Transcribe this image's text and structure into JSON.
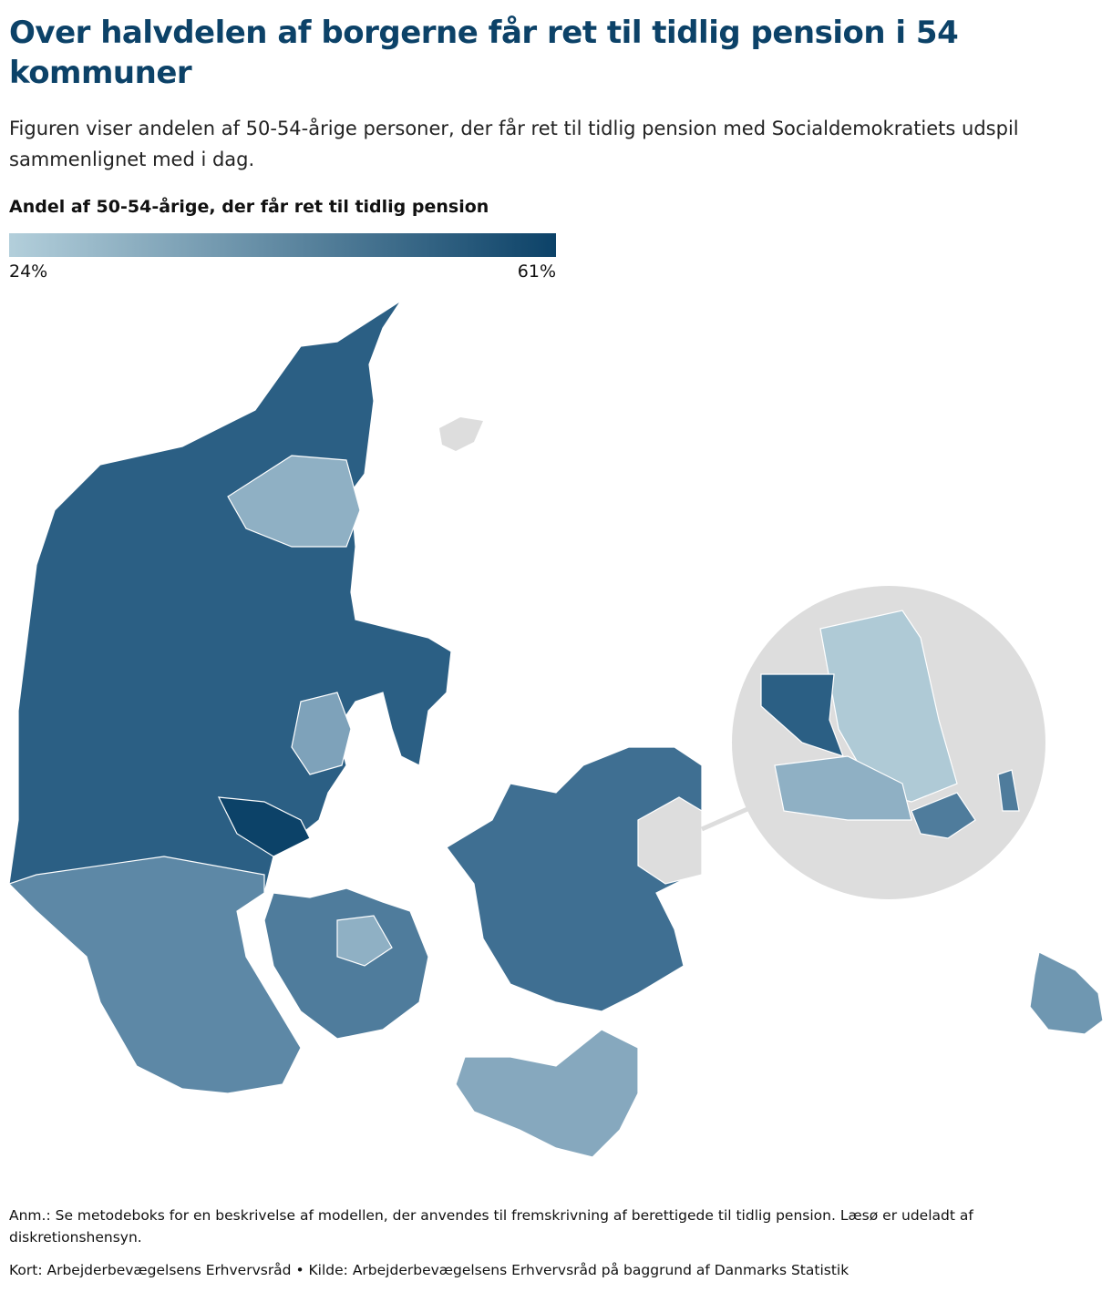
{
  "header": {
    "title": "Over halvdelen af borgerne får ret til tidlig pension i 54 kommuner",
    "subtitle": "Figuren viser andelen af 50-54-årige personer, der får ret til tidlig pension med Socialdemokratiets udspil sammenlignet med i dag."
  },
  "legend": {
    "title": "Andel af 50-54-årige, der får ret til tidlig pension",
    "min": {
      "value": 24,
      "label": "24%"
    },
    "max": {
      "value": 61,
      "label": "61%"
    },
    "colors": [
      "#b3cfdb",
      "#0c4268"
    ]
  },
  "notes": {
    "note": "Anm.: Se metodeboks for en beskrivelse af modellen, der anvendes til fremskrivning af berettigede til tidlig pension. Læsø er udeladt af diskretionshensyn.",
    "source": "Kort: Arbejderbevægelsens Erhvervsråd • Kilde: Arbejderbevægelsens Erhvervsråd på baggrund af Danmarks Statistik"
  }
}
